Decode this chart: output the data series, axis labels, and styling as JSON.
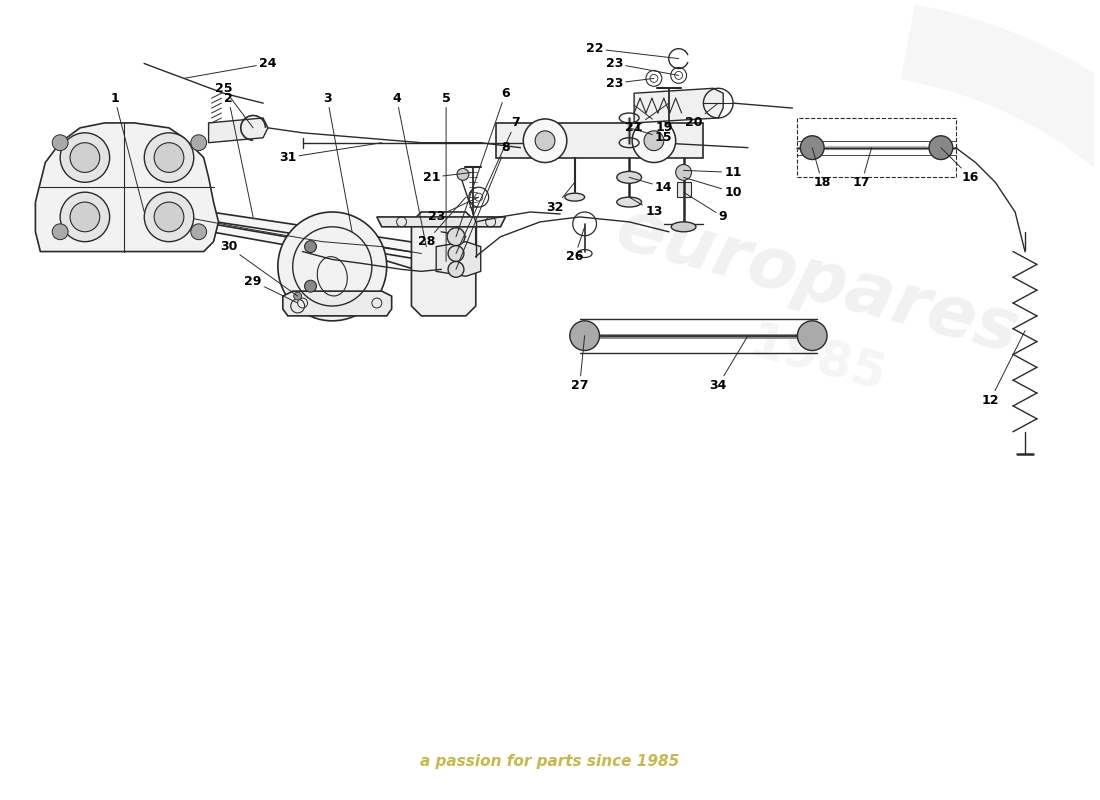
{
  "background_color": "#ffffff",
  "line_color": "#2a2a2a",
  "label_color": "#000000",
  "watermark_color_1": "#cccccc",
  "watermark_color_2": "#c8b84a",
  "watermark_text_2": "a passion for parts since 1985",
  "fig_width": 11.0,
  "fig_height": 8.0,
  "dpi": 100
}
